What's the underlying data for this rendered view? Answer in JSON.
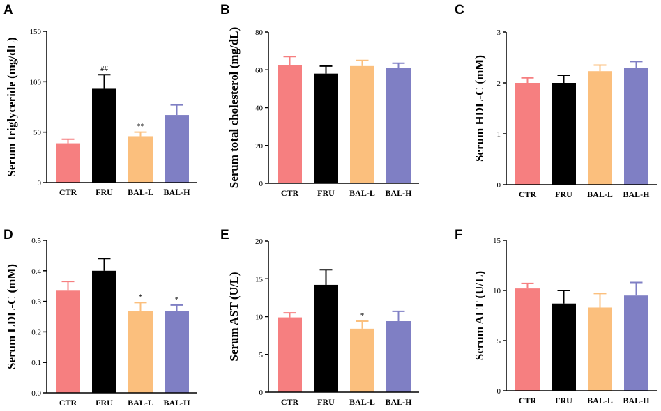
{
  "chart_data": [
    {
      "type": "bar",
      "panel": "A",
      "ylabel": "Serum triglyceride (mg/dL)",
      "ylim": [
        0,
        150
      ],
      "yticks": [
        0,
        50,
        100,
        150
      ],
      "categories": [
        "CTR",
        "FRU",
        "BAL-L",
        "BAL-H"
      ],
      "values": [
        39,
        93,
        46,
        67
      ],
      "errors": [
        4,
        14,
        4,
        10
      ],
      "annotations": [
        "",
        "##",
        "**",
        ""
      ]
    },
    {
      "type": "bar",
      "panel": "B",
      "ylabel": "Serum total cholesterol (mg/dL)",
      "ylim": [
        0,
        80
      ],
      "yticks": [
        0,
        20,
        40,
        60,
        80
      ],
      "categories": [
        "CTR",
        "FRU",
        "BAL-L",
        "BAL-H"
      ],
      "values": [
        62.5,
        58,
        62,
        61
      ],
      "errors": [
        4.5,
        4,
        3,
        2.5
      ],
      "annotations": [
        "",
        "",
        "",
        ""
      ]
    },
    {
      "type": "bar",
      "panel": "C",
      "ylabel": "Serum HDL-C (mM)",
      "ylim": [
        0,
        3
      ],
      "yticks": [
        0,
        1,
        2,
        3
      ],
      "categories": [
        "CTR",
        "FRU",
        "BAL-L",
        "BAL-H"
      ],
      "values": [
        2.0,
        2.0,
        2.23,
        2.3
      ],
      "errors": [
        0.1,
        0.15,
        0.12,
        0.12
      ],
      "annotations": [
        "",
        "",
        "",
        ""
      ]
    },
    {
      "type": "bar",
      "panel": "D",
      "ylabel": "Serum LDL-C (mM)",
      "ylim": [
        0,
        0.5
      ],
      "yticks": [
        "0.0",
        "0.1",
        "0.2",
        "0.3",
        "0.4",
        "0.5"
      ],
      "categories": [
        "CTR",
        "FRU",
        "BAL-L",
        "BAL-H"
      ],
      "values": [
        0.335,
        0.4,
        0.268,
        0.268
      ],
      "errors": [
        0.03,
        0.04,
        0.028,
        0.02
      ],
      "annotations": [
        "",
        "",
        "*",
        "*"
      ]
    },
    {
      "type": "bar",
      "panel": "E",
      "ylabel": "Serum AST (U/L)",
      "ylim": [
        0,
        20
      ],
      "yticks": [
        0,
        5,
        10,
        15,
        20
      ],
      "categories": [
        "CTR",
        "FRU",
        "BAL-L",
        "BAL-H"
      ],
      "values": [
        9.9,
        14.2,
        8.4,
        9.4
      ],
      "errors": [
        0.6,
        2.0,
        1.0,
        1.3
      ],
      "annotations": [
        "",
        "",
        "*",
        ""
      ]
    },
    {
      "type": "bar",
      "panel": "F",
      "ylabel": "Serum ALT (U/L)",
      "ylim": [
        0,
        15
      ],
      "yticks": [
        0,
        5,
        10,
        15
      ],
      "categories": [
        "CTR",
        "FRU",
        "BAL-L",
        "BAL-H"
      ],
      "values": [
        10.2,
        8.7,
        8.3,
        9.5
      ],
      "errors": [
        0.5,
        1.3,
        1.4,
        1.3
      ],
      "annotations": [
        "",
        "",
        "",
        ""
      ]
    }
  ],
  "colors": {
    "CTR": "#f67f80",
    "FRU": "#000000",
    "BAL-L": "#fbbf7d",
    "BAL-H": "#7f7fc4",
    "axis": "#000000"
  }
}
